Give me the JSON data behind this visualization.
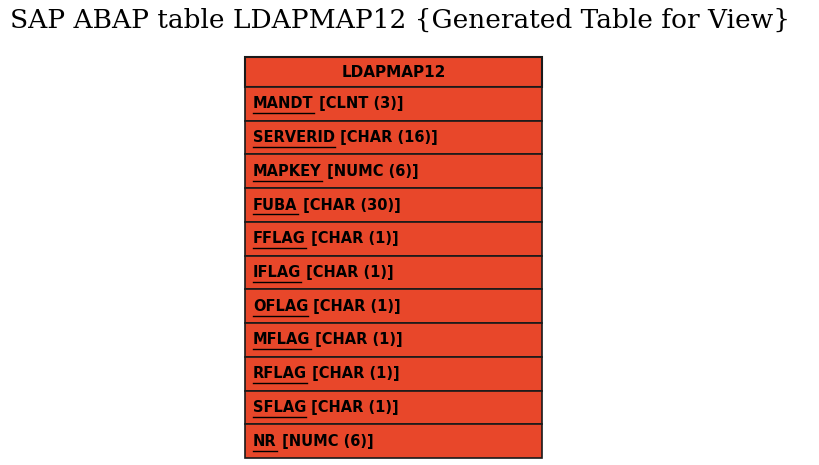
{
  "title": "SAP ABAP table LDAPMAP12 {Generated Table for View}",
  "table_name": "LDAPMAP12",
  "fields": [
    {
      "key": "MANDT",
      "type": " [CLNT (3)]",
      "underline": true
    },
    {
      "key": "SERVERID",
      "type": " [CHAR (16)]",
      "underline": true
    },
    {
      "key": "MAPKEY",
      "type": " [NUMC (6)]",
      "underline": true
    },
    {
      "key": "FUBA",
      "type": " [CHAR (30)]",
      "underline": true
    },
    {
      "key": "FFLAG",
      "type": " [CHAR (1)]",
      "underline": true
    },
    {
      "key": "IFLAG",
      "type": " [CHAR (1)]",
      "underline": true
    },
    {
      "key": "OFLAG",
      "type": " [CHAR (1)]",
      "underline": true
    },
    {
      "key": "MFLAG",
      "type": " [CHAR (1)]",
      "underline": true
    },
    {
      "key": "RFLAG",
      "type": " [CHAR (1)]",
      "underline": true
    },
    {
      "key": "SFLAG",
      "type": " [CHAR (1)]",
      "underline": true
    },
    {
      "key": "NR",
      "type": " [NUMC (6)]",
      "underline": true
    }
  ],
  "bg_color": "#ffffff",
  "table_fill_color": "#e8472a",
  "header_fill_color": "#e8472a",
  "border_color": "#1a1a1a",
  "text_color": "#000000",
  "title_fontsize": 19,
  "header_fontsize": 11,
  "field_fontsize": 10.5,
  "figsize": [
    8.2,
    4.65
  ],
  "dpi": 100
}
